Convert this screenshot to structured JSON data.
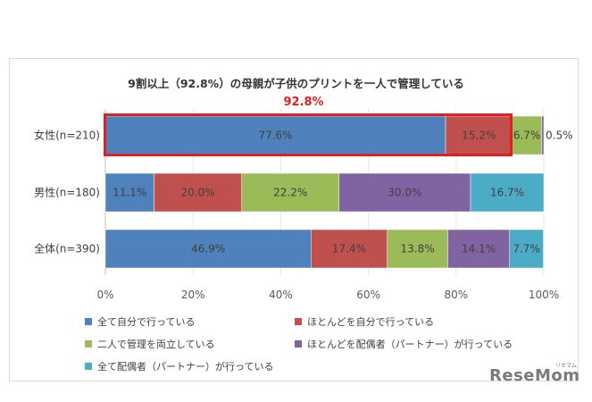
{
  "chart_data": {
    "type": "bar",
    "orientation": "horizontal-stacked-100",
    "title": "9割以上（92.8%）の母親が子供のプリントを一人で管理している",
    "highlight_label": "92.8%",
    "categories": [
      "女性(n=210)",
      "男性(n=180)",
      "全体(n=390)"
    ],
    "series": [
      {
        "name": "全て自分で行っている",
        "color": "#4f81bd",
        "values": [
          77.6,
          11.1,
          46.9
        ]
      },
      {
        "name": "ほとんどを自分で行っている",
        "color": "#c0504d",
        "values": [
          15.2,
          20.0,
          17.4
        ]
      },
      {
        "name": "二人で管理を両立している",
        "color": "#9bbb59",
        "values": [
          6.7,
          22.2,
          13.8
        ]
      },
      {
        "name": "ほとんどを配偶者（パートナー）が行っている",
        "color": "#8064a2",
        "values": [
          0.5,
          30.0,
          14.1
        ]
      },
      {
        "name": "全て配偶者（パートナー）が行っている",
        "color": "#4bacc6",
        "values": [
          0.0,
          16.7,
          7.7
        ]
      }
    ],
    "data_labels": [
      [
        "77.6%",
        "15.2%",
        "6.7%",
        "0.5%",
        ""
      ],
      [
        "11.1%",
        "20.0%",
        "22.2%",
        "30.0%",
        "16.7%"
      ],
      [
        "46.9%",
        "17.4%",
        "13.8%",
        "14.1%",
        "7.7%"
      ]
    ],
    "xlim": [
      0,
      100
    ],
    "xticks": [
      "0%",
      "20%",
      "40%",
      "60%",
      "80%",
      "100%"
    ],
    "xlabel": "",
    "ylabel": "",
    "legend_position": "bottom"
  },
  "branding": {
    "logo": "ReseMom",
    "logo_sub": "リセマム"
  }
}
